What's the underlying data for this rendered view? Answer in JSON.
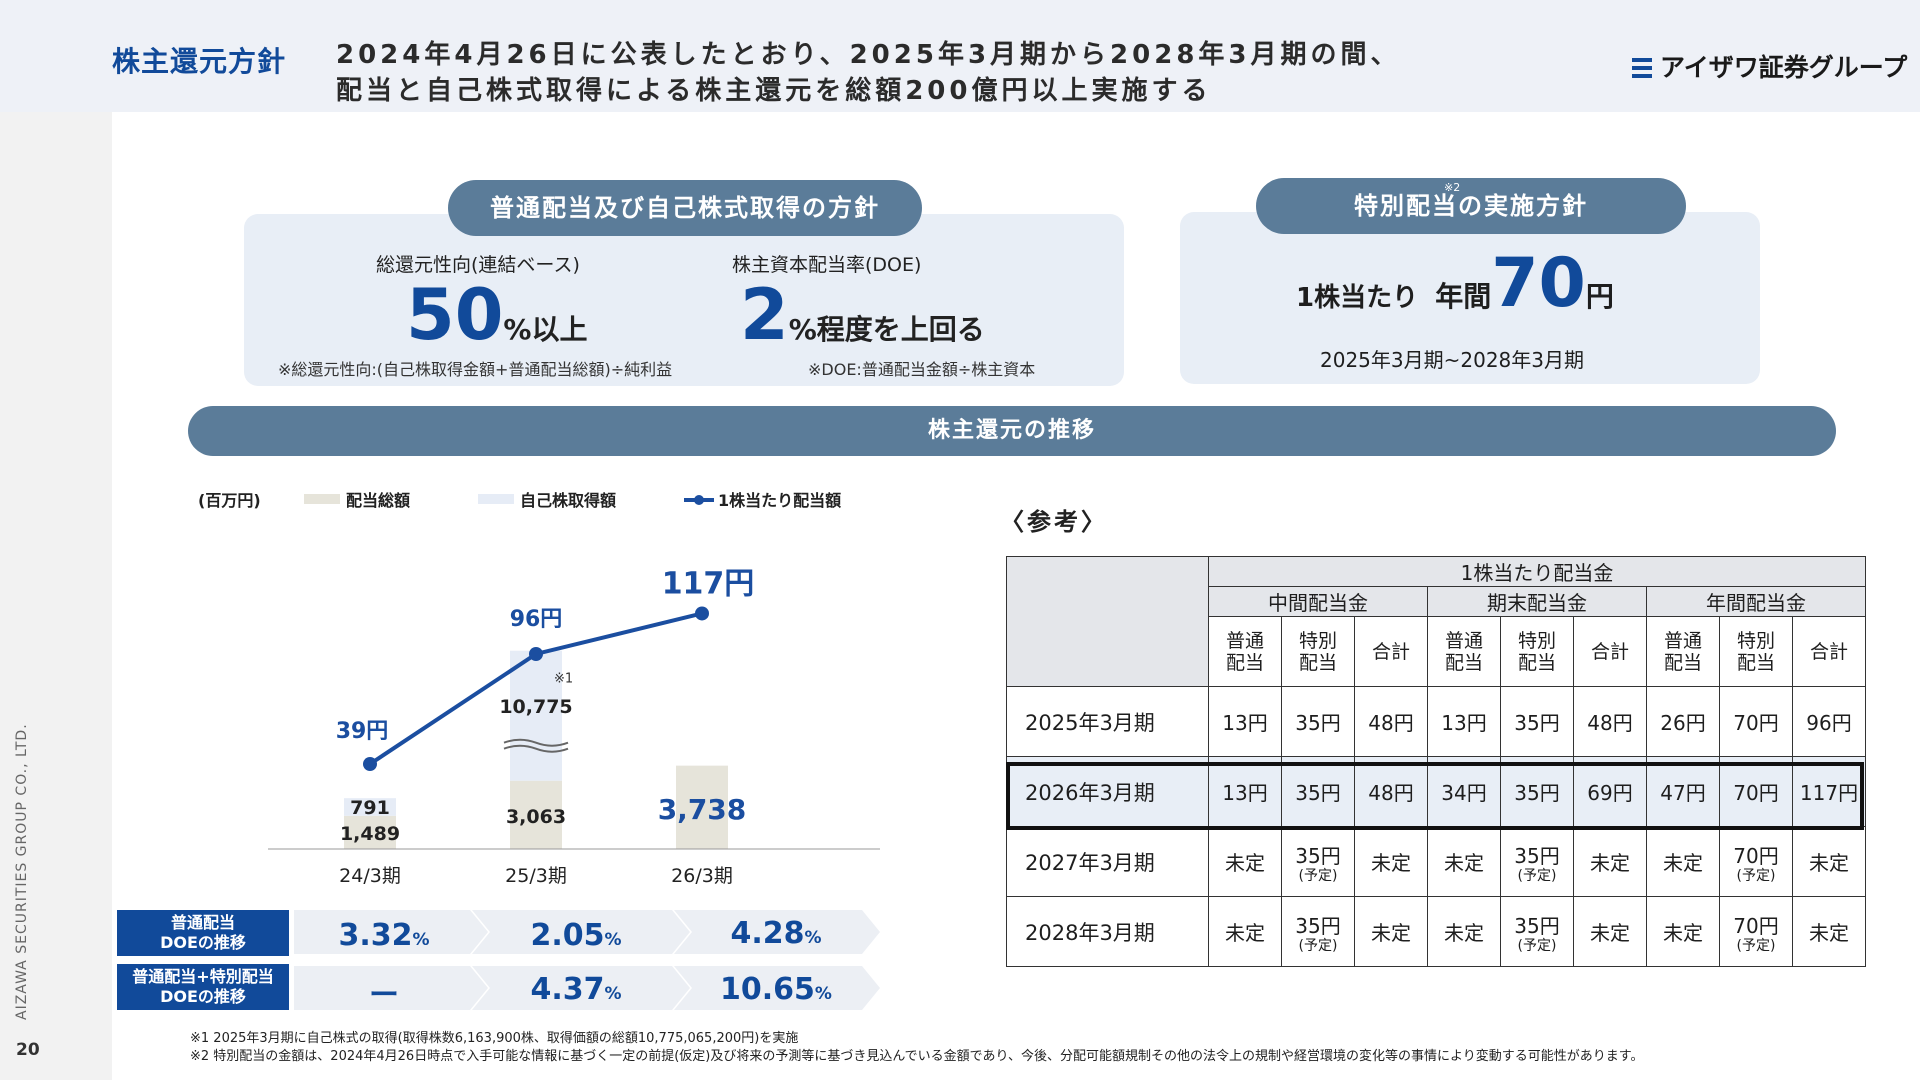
{
  "header": {
    "title": "株主還元方針",
    "headline_line1": "2024年4月26日に公表したとおり、2025年3月期から2028年3月期の間、",
    "headline_line2": "配当と自己株式取得による株主還元を総額200億円以上実施する",
    "logo_text": "アイザワ証券グループ"
  },
  "side": {
    "company": "AIZAWA SECURITIES GROUP CO., LTD.",
    "page_number": "20"
  },
  "policy": {
    "pill": "普通配当及び自己株式取得の方針",
    "payout_label": "総還元性向(連結ベース)",
    "payout_value": "50",
    "payout_unit": "%以上",
    "doe_label": "株主資本配当率(DOE)",
    "doe_value": "2",
    "doe_unit": "%程度を上回る",
    "payout_note": "※総還元性向:(自己株取得金額+普通配当総額)÷純利益",
    "doe_note": "※DOE:普通配当金額÷株主資本"
  },
  "special": {
    "pill": "特別配当の実施方針",
    "note_mark": "※2",
    "per_share": "1株当たり",
    "annual": "年間",
    "value": "70",
    "unit": "円",
    "period": "2025年3月期~2028年3月期"
  },
  "trend_title": "株主還元の推移",
  "chart_data": {
    "type": "bar",
    "unit_label": "(百万円)",
    "legend": [
      "配当総額",
      "自己株取得額",
      "1株当たり配当額"
    ],
    "categories": [
      "24/3期",
      "25/3期",
      "26/3期"
    ],
    "series": [
      {
        "name": "配当総額",
        "values": [
          1489,
          3063,
          3738
        ]
      },
      {
        "name": "自己株取得額",
        "values": [
          791,
          10775,
          null
        ]
      },
      {
        "name": "1株当たり配当額",
        "values": [
          39,
          96,
          117
        ],
        "labels": [
          "39円",
          "96円",
          "117円"
        ]
      }
    ],
    "bar_labels": {
      "dividend": [
        "1,489",
        "3,063",
        "3,738"
      ],
      "buyback": [
        "791",
        "10,775",
        ""
      ]
    },
    "buyback_note_mark": "※1",
    "colors": {
      "dividend": "#e6e4da",
      "buyback": "#e6ecf6",
      "line": "#1b4ea0"
    }
  },
  "doe_rows": [
    {
      "label": "普通配当\nDOEの推移",
      "label1": "普通配当",
      "label2": "DOEの推移",
      "values": [
        "3.32",
        "2.05",
        "4.28"
      ],
      "unit": "%"
    },
    {
      "label1": "普通配当+特別配当",
      "label2": "DOEの推移",
      "values": [
        "ー",
        "4.37",
        "10.65"
      ],
      "unit": "%"
    }
  ],
  "reference": {
    "label": "〈参考〉",
    "top_header": "1株当たり配当金",
    "groups": [
      "中間配当金",
      "期末配当金",
      "年間配当金"
    ],
    "sub_headers": [
      "普通\n配当",
      "特別\n配当",
      "合計"
    ],
    "rows": [
      {
        "year": "2025年3月期",
        "cells": [
          "13円",
          "35円",
          "48円",
          "13円",
          "35円",
          "48円",
          "26円",
          "70円",
          "96円"
        ]
      },
      {
        "year": "2026年3月期",
        "cells": [
          "13円",
          "35円",
          "48円",
          "34円",
          "35円",
          "69円",
          "47円",
          "70円",
          "117円"
        ]
      },
      {
        "year": "2027年3月期",
        "cells": [
          "未定",
          "35円|(予定)",
          "未定",
          "未定",
          "35円|(予定)",
          "未定",
          "未定",
          "70円|(予定)",
          "未定"
        ]
      },
      {
        "year": "2028年3月期",
        "cells": [
          "未定",
          "35円|(予定)",
          "未定",
          "未定",
          "35円|(予定)",
          "未定",
          "未定",
          "70円|(予定)",
          "未定"
        ]
      }
    ]
  },
  "footnotes": [
    "※1 2025年3月期に自己株式の取得(取得株数6,163,900株、取得価額の総額10,775,065,200円)を実施",
    "※2 特別配当の金額は、2024年4月26日時点で入手可能な情報に基づく一定の前提(仮定)及び将来の予測等に基づき見込んでいる金額であり、今後、分配可能額規制その他の法令上の規制や経営環境の変化等の事情により変動する可能性があります。"
  ]
}
